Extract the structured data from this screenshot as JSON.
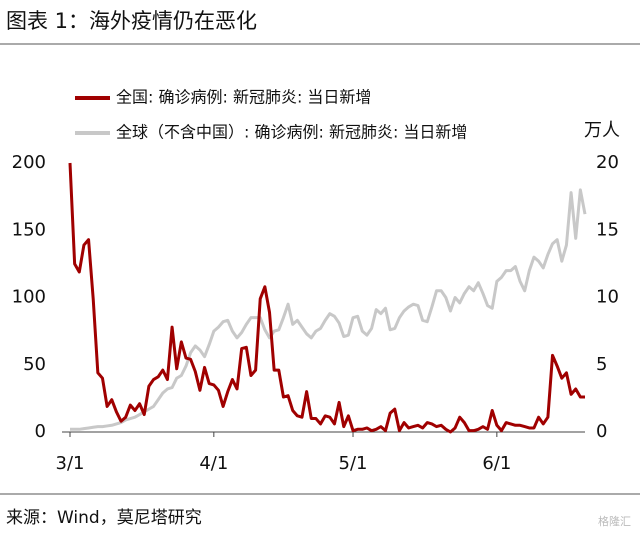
{
  "header": {
    "title": "图表 1：海外疫情仍在恶化"
  },
  "chart_data": {
    "type": "line",
    "categories": [
      "3/1",
      null,
      null,
      null,
      null,
      null,
      null,
      null,
      null,
      null,
      null,
      null,
      null,
      null,
      null,
      null,
      null,
      null,
      null,
      null,
      null,
      null,
      null,
      null,
      null,
      null,
      null,
      null,
      null,
      null,
      null,
      "4/1",
      null,
      null,
      null,
      null,
      null,
      null,
      null,
      null,
      null,
      null,
      null,
      null,
      null,
      null,
      null,
      null,
      null,
      null,
      null,
      null,
      null,
      null,
      null,
      null,
      null,
      null,
      null,
      null,
      null,
      "5/1",
      null,
      null,
      null,
      null,
      null,
      null,
      null,
      null,
      null,
      null,
      null,
      null,
      null,
      null,
      null,
      null,
      null,
      null,
      null,
      null,
      null,
      null,
      null,
      null,
      null,
      null,
      null,
      null,
      null,
      null,
      "6/1",
      null,
      null,
      null,
      null,
      null,
      null,
      null,
      null,
      null,
      null,
      null,
      null,
      null,
      null,
      null,
      null,
      null,
      null,
      null
    ],
    "series": [
      {
        "name": "全球（不含中国）: 确诊病例: 新冠肺炎: 当日新增",
        "color": "#c8c8c8",
        "axis": "y2",
        "values": [
          0.2,
          0.2,
          0.2,
          0.25,
          0.3,
          0.35,
          0.4,
          0.4,
          0.45,
          0.5,
          0.6,
          0.7,
          0.9,
          1.0,
          1.1,
          1.3,
          1.5,
          1.7,
          1.9,
          2.4,
          2.9,
          3.2,
          3.3,
          4.0,
          4.2,
          4.9,
          5.9,
          6.4,
          6.1,
          5.6,
          6.5,
          7.5,
          7.8,
          8.2,
          8.3,
          7.5,
          7.0,
          7.4,
          8.0,
          8.5,
          8.5,
          8.5,
          7.6,
          7.0,
          7.5,
          7.6,
          8.5,
          9.5,
          8.0,
          8.3,
          7.8,
          7.3,
          7.0,
          7.5,
          7.7,
          8.3,
          8.8,
          8.6,
          8.1,
          7.1,
          7.2,
          8.5,
          8.6,
          7.5,
          7.2,
          7.7,
          9.1,
          8.8,
          9.2,
          7.6,
          7.7,
          8.5,
          9.0,
          9.3,
          9.5,
          9.4,
          8.3,
          8.2,
          9.3,
          10.5,
          10.5,
          10.0,
          9.0,
          10.0,
          9.6,
          10.3,
          10.8,
          10.5,
          11.1,
          10.3,
          9.4,
          9.2,
          11.2,
          11.5,
          12.0,
          12.0,
          12.3,
          11.2,
          10.5,
          12.0,
          13.0,
          12.7,
          12.2,
          13.2,
          14.0,
          14.3,
          12.7,
          13.9,
          17.8,
          14.4,
          18.0,
          16.2
        ]
      },
      {
        "name": "全国: 确诊病例: 新冠肺炎: 当日新增",
        "color": "#a00000",
        "values": [
          200,
          125,
          119,
          139,
          143,
          99,
          44,
          40,
          19,
          24,
          15,
          8,
          11,
          20,
          16,
          21,
          13,
          34,
          39,
          41,
          46,
          39,
          78,
          47,
          67,
          55,
          54,
          45,
          31,
          48,
          36,
          35,
          31,
          19,
          30,
          39,
          32,
          62,
          63,
          42,
          46,
          99,
          108,
          89,
          46,
          46,
          26,
          27,
          16,
          12,
          11,
          30,
          10,
          10,
          6,
          12,
          11,
          6,
          22,
          4,
          12,
          1,
          2,
          2,
          3,
          1,
          2,
          4,
          1,
          14,
          17,
          1,
          7,
          3,
          4,
          5,
          3,
          7,
          6,
          4,
          5,
          2,
          0,
          3,
          11,
          7,
          1,
          1,
          2,
          4,
          2,
          16,
          5,
          1,
          7,
          6,
          5,
          5,
          4,
          3,
          3,
          11,
          6,
          11,
          57,
          49,
          40,
          44,
          28,
          32,
          26,
          26
        ]
      }
    ],
    "ylim": [
      0,
      200
    ],
    "yticks": [
      0,
      50,
      100,
      150,
      200
    ],
    "y2lim": [
      0,
      20
    ],
    "y2ticks": [
      0,
      5,
      10,
      15,
      20
    ],
    "y2label": "万人",
    "legend": "top-left"
  },
  "footer": {
    "source": "来源：Wind，莫尼塔研究",
    "watermark": "格隆汇"
  }
}
